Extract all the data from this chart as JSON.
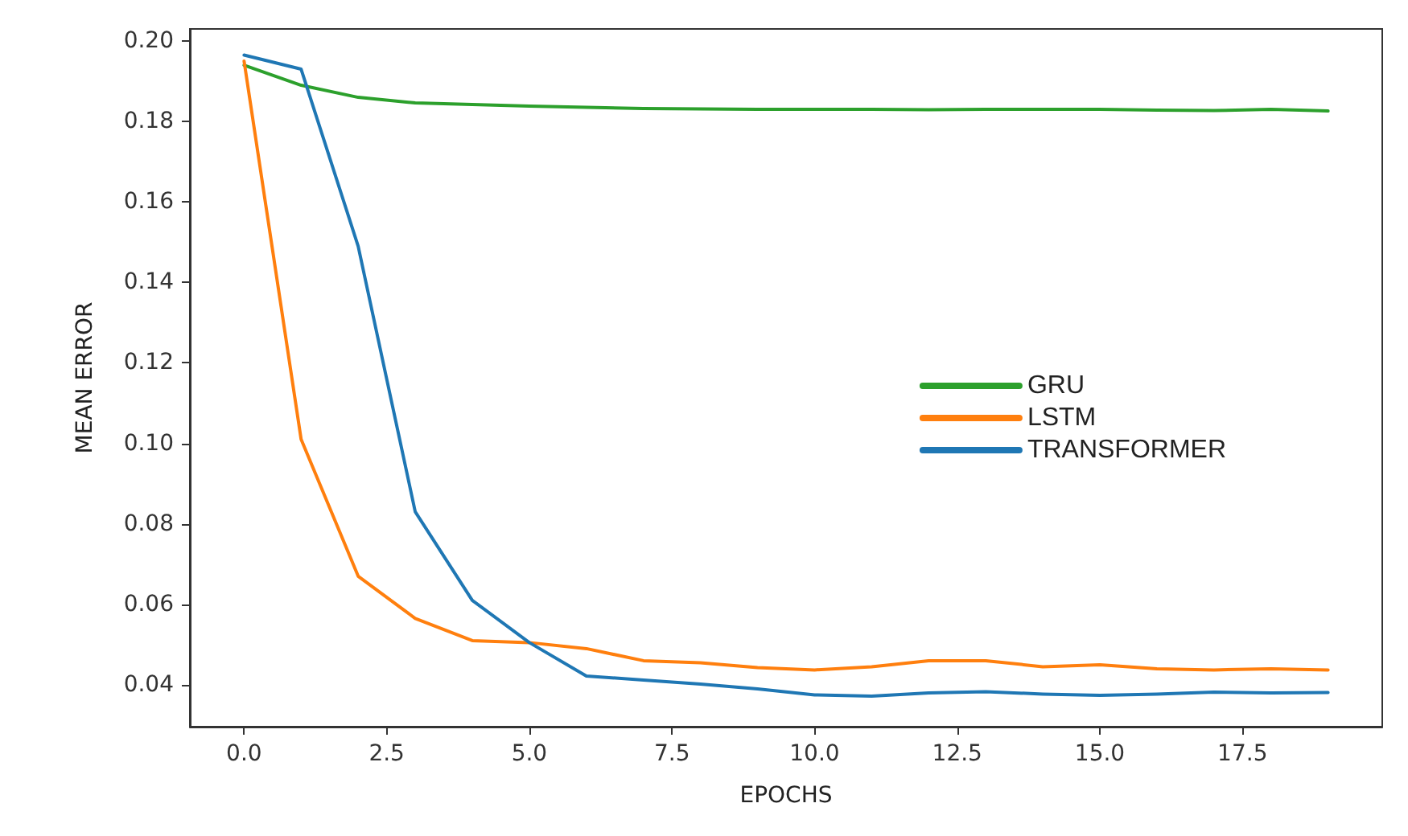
{
  "chart_data": {
    "type": "line",
    "xlabel": "EPOCHS",
    "ylabel": "MEAN ERROR",
    "x": [
      0,
      1,
      2,
      3,
      4,
      5,
      6,
      7,
      8,
      9,
      10,
      11,
      12,
      13,
      14,
      15,
      16,
      17,
      18,
      19
    ],
    "series": [
      {
        "name": "GRU",
        "color": "#2ca02c",
        "values": [
          0.194,
          0.189,
          0.186,
          0.1846,
          0.1842,
          0.1838,
          0.1835,
          0.1832,
          0.1831,
          0.183,
          0.183,
          0.183,
          0.1829,
          0.183,
          0.183,
          0.183,
          0.1828,
          0.1827,
          0.183,
          0.1826
        ]
      },
      {
        "name": "LSTM",
        "color": "#ff7f0e",
        "values": [
          0.195,
          0.101,
          0.067,
          0.0565,
          0.051,
          0.0505,
          0.049,
          0.046,
          0.0455,
          0.0443,
          0.0437,
          0.0445,
          0.046,
          0.046,
          0.0445,
          0.045,
          0.044,
          0.0437,
          0.044,
          0.0437
        ]
      },
      {
        "name": "TRANSFORMER",
        "color": "#1f77b4",
        "values": [
          0.1965,
          0.193,
          0.149,
          0.083,
          0.061,
          0.0505,
          0.0422,
          0.0412,
          0.0402,
          0.039,
          0.0375,
          0.0372,
          0.038,
          0.0383,
          0.0377,
          0.0374,
          0.0377,
          0.0382,
          0.038,
          0.0381
        ]
      }
    ],
    "xlim": [
      -0.95,
      19.95
    ],
    "ylim": [
      0.0296,
      0.203
    ],
    "xticks": [
      {
        "value": 0,
        "label": "0.0"
      },
      {
        "value": 2.5,
        "label": "2.5"
      },
      {
        "value": 5,
        "label": "5.0"
      },
      {
        "value": 7.5,
        "label": "7.5"
      },
      {
        "value": 10,
        "label": "10.0"
      },
      {
        "value": 12.5,
        "label": "12.5"
      },
      {
        "value": 15,
        "label": "15.0"
      },
      {
        "value": 17.5,
        "label": "17.5"
      }
    ],
    "yticks": [
      {
        "value": 0.04,
        "label": "0.04"
      },
      {
        "value": 0.06,
        "label": "0.06"
      },
      {
        "value": 0.08,
        "label": "0.08"
      },
      {
        "value": 0.1,
        "label": "0.10"
      },
      {
        "value": 0.12,
        "label": "0.12"
      },
      {
        "value": 0.14,
        "label": "0.14"
      },
      {
        "value": 0.16,
        "label": "0.16"
      },
      {
        "value": 0.18,
        "label": "0.18"
      },
      {
        "value": 0.2,
        "label": "0.20"
      }
    ],
    "grid": false,
    "legend": "right",
    "marker": "none",
    "line_style": "solid"
  }
}
